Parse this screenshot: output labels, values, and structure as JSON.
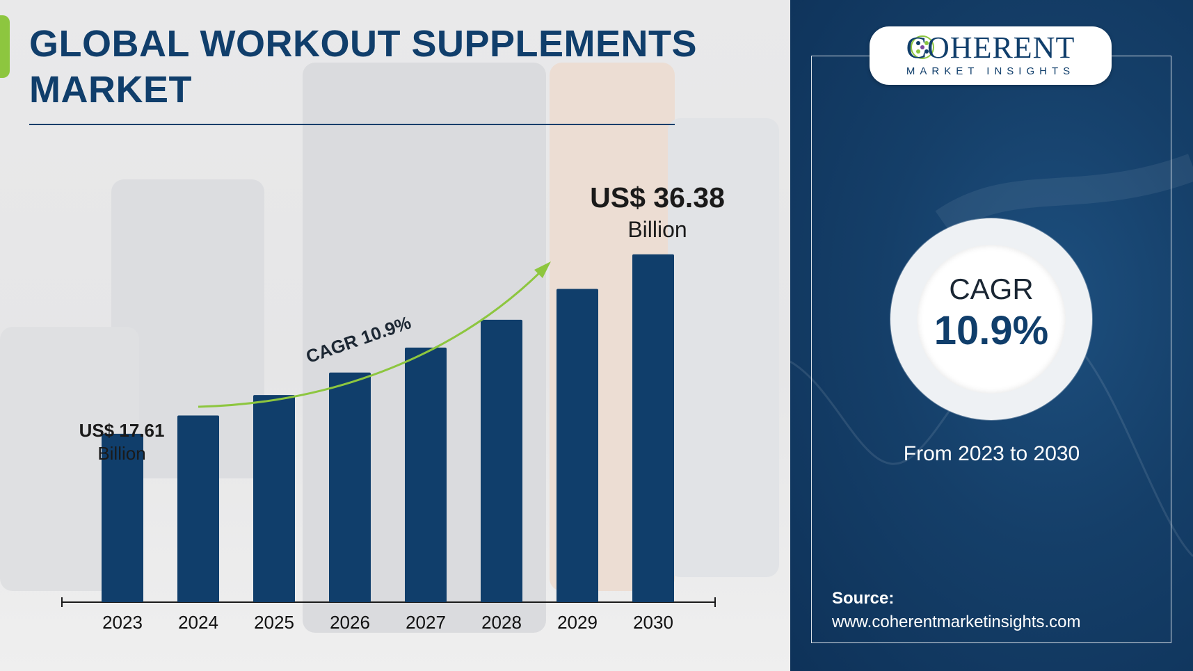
{
  "title_line1": "GLOBAL WORKOUT SUPPLEMENTS",
  "title_line2": "MARKET",
  "colors": {
    "bar": "#103e6b",
    "accent_green": "#8dc63f",
    "panel": "#153f69",
    "title": "#103e6b"
  },
  "chart_data": {
    "type": "bar",
    "categories": [
      "2023",
      "2024",
      "2025",
      "2026",
      "2027",
      "2028",
      "2029",
      "2030"
    ],
    "values": [
      17.61,
      19.53,
      21.66,
      24.02,
      26.63,
      29.54,
      32.76,
      36.38
    ],
    "unit": "US$ Billion",
    "ylim": [
      0,
      40
    ],
    "grid": false,
    "annotations": {
      "first": {
        "value": "US$ 17.61",
        "unit": "Billion"
      },
      "last": {
        "value": "US$ 36.38",
        "unit": "Billion"
      },
      "trend_label": "CAGR 10.9%"
    }
  },
  "logo": {
    "brand_main": "COHERENT",
    "brand_sub": "MARKET INSIGHTS"
  },
  "cagr_panel": {
    "label": "CAGR",
    "value": "10.9%",
    "period": "From 2023 to 2030"
  },
  "source": {
    "label": "Source:",
    "url": "www.coherentmarketinsights.com"
  }
}
